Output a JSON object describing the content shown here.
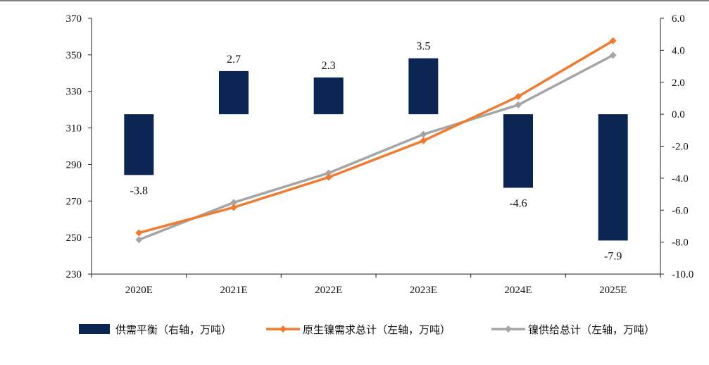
{
  "chart_data": {
    "type": "bar+line",
    "categories": [
      "2020E",
      "2021E",
      "2022E",
      "2023E",
      "2024E",
      "2025E"
    ],
    "series": [
      {
        "name": "供需平衡（右轴，万吨）",
        "type": "bar",
        "axis": "right",
        "color": "#0c2653",
        "values": [
          -3.8,
          2.7,
          2.3,
          3.5,
          -4.6,
          -7.9
        ],
        "labels": [
          "-3.8",
          "2.7",
          "2.3",
          "3.5",
          "-4.6",
          "-7.9"
        ]
      },
      {
        "name": "原生镍需求总计（左轴，万吨）",
        "type": "line",
        "axis": "left",
        "color": "#f07b2e",
        "values": [
          252.6,
          266.5,
          283.0,
          303.0,
          327.2,
          357.7
        ]
      },
      {
        "name": "镍供给总计（左轴，万吨）",
        "type": "line",
        "axis": "left",
        "color": "#a5a5a5",
        "values": [
          248.8,
          269.2,
          285.3,
          306.5,
          322.6,
          349.8
        ]
      }
    ],
    "left_axis": {
      "min": 230,
      "max": 370,
      "ticks": [
        "230",
        "250",
        "270",
        "290",
        "310",
        "330",
        "350",
        "370"
      ]
    },
    "right_axis": {
      "min": -10,
      "max": 6,
      "ticks": [
        "-10.0",
        "-8.0",
        "-6.0",
        "-4.0",
        "-2.0",
        "0.0",
        "2.0",
        "4.0",
        "6.0"
      ]
    },
    "grid": false,
    "legend_position": "bottom"
  }
}
